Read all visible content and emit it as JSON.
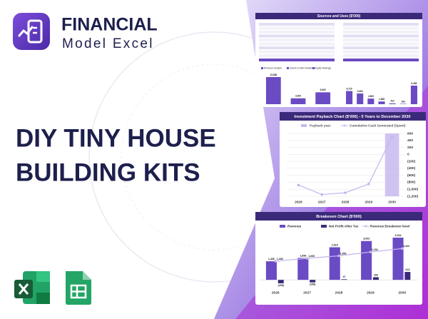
{
  "logo": {
    "name": "FINANCIAL",
    "tagline": "Model Excel"
  },
  "headline": {
    "line1": "DIY TINY HOUSE",
    "line2": "BUILDING KITS"
  },
  "cards": [
    {
      "chart_data": {
        "type": "bar",
        "title": "Sources and Uses ($'000)",
        "legend": [
          "Revenue receipts",
          "Grants & Debt Drawdown",
          "Equity Raisings"
        ],
        "series": [
          {
            "name": "Sources",
            "color": "#6a4bc4",
            "values": [
              13838,
              3000,
              6060
            ],
            "value_labels": [
              "13,838",
              "3,000",
              "6,060"
            ]
          },
          {
            "name": "Uses",
            "color": "#6a4bc4",
            "values": [
              6715,
              5464,
              2865,
              1388,
              412,
              203,
              9469
            ],
            "value_labels": [
              "6,715",
              "5,464",
              "2,865",
              "1,388",
              "412",
              "203",
              "9,469"
            ]
          }
        ]
      }
    },
    {
      "chart_data": {
        "type": "line",
        "title": "Investment Payback Chart ($'000) - 5 Years to December 2030",
        "categories": [
          "2026",
          "2027",
          "2028",
          "2029",
          "2030"
        ],
        "series": [
          {
            "name": "Payback year",
            "color": "#c9b8ef",
            "kind": "bar",
            "values": [
              null,
              null,
              null,
              null,
              600
            ]
          },
          {
            "name": "Cumulative Cash Generated (Spent)",
            "color": "#c4b4ec",
            "values": [
              -880,
              -1150,
              -1100,
              -850,
              500
            ]
          }
        ],
        "ylim": [
          -1200,
          600
        ],
        "yticks": [
          600,
          400,
          200,
          0,
          {
            "value": -200,
            "label": "(200)"
          },
          {
            "value": -400,
            "label": "(400)"
          },
          {
            "value": -600,
            "label": "(600)"
          },
          {
            "value": -800,
            "label": "(800)"
          },
          {
            "value": -1000,
            "label": "(1,000)"
          },
          {
            "value": -1200,
            "label": "(1,200)"
          }
        ],
        "grid": true
      }
    },
    {
      "chart_data": {
        "type": "combo",
        "title": "Breakeven Chart ($'000)",
        "categories": [
          "2026",
          "2027",
          "2028",
          "2029",
          "2030"
        ],
        "series": [
          {
            "name": "Revenue",
            "color": "#6a4bc4",
            "kind": "bar",
            "values": [
              1436,
              1698,
              2519,
              3003,
              3264
            ],
            "value_labels": [
              "1,436",
              "1,698",
              "2,519",
              "3,003",
              "3,264"
            ]
          },
          {
            "name": "Net Profit After Tax",
            "color": "#3b2a7a",
            "kind": "bar",
            "values": [
              -268,
              -198,
              47,
              206,
              613
            ],
            "value_labels": [
              "(268)",
              "(198)",
              "47",
              "206",
              "613"
            ]
          },
          {
            "name": "Revenue Breakeven level",
            "color": "#c4b4ec",
            "kind": "line",
            "values": [
              1438,
              1665,
              1856,
              2152,
              2422
            ],
            "value_labels": [
              "1,438",
              "1,665",
              "1,856",
              "2,152",
              "2,422"
            ]
          }
        ]
      }
    }
  ]
}
